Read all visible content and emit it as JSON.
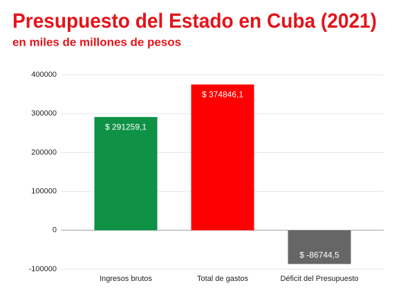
{
  "chart_data": {
    "type": "bar",
    "title": "Presupuesto del Estado en Cuba (2021)",
    "subtitle": "en miles de millones de pesos",
    "categories": [
      "Ingresos brutos",
      "Total de gastos",
      "Déficit del Presupuesto"
    ],
    "values": [
      291259.1,
      374846.1,
      -86744.5
    ],
    "value_labels": [
      "$ 291259,1",
      "$ 374846,1",
      "$ -86744,5"
    ],
    "colors": [
      "#0f9146",
      "#ff0000",
      "#666666"
    ],
    "ylim": [
      -100000,
      400000
    ],
    "yticks": [
      -100000,
      0,
      100000,
      200000,
      300000,
      400000
    ],
    "grid": true
  }
}
